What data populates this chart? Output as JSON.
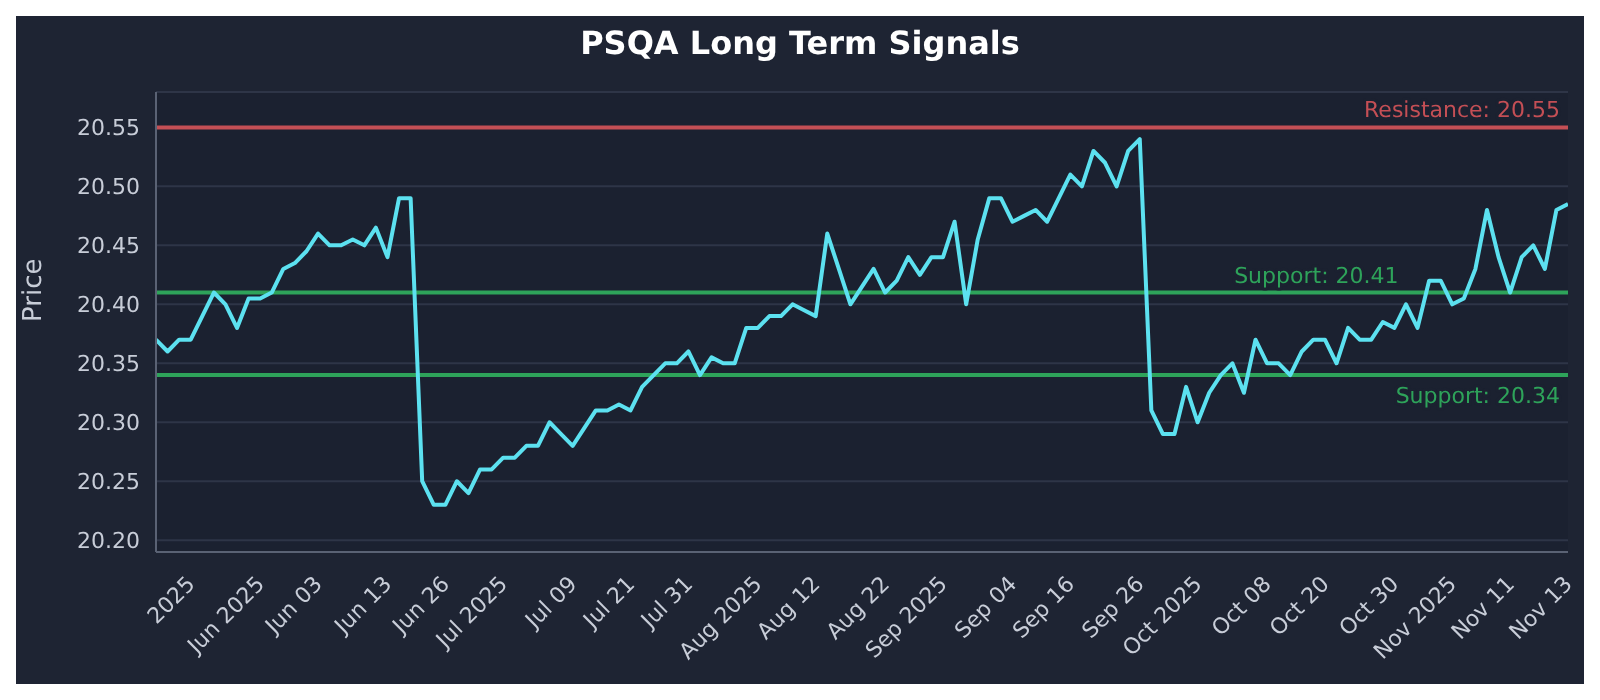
{
  "chart_data": {
    "type": "line",
    "title": "PSQA Long Term Signals",
    "ylabel": "Price",
    "categories": [
      null,
      null,
      null,
      "2025",
      null,
      null,
      null,
      null,
      null,
      "Jun 2025",
      null,
      null,
      null,
      null,
      "Jun 03",
      null,
      null,
      null,
      null,
      null,
      "Jun 13",
      null,
      null,
      null,
      null,
      "Jun 26",
      null,
      null,
      null,
      null,
      "Jul 2025",
      null,
      null,
      null,
      null,
      null,
      "Jul 09",
      null,
      null,
      null,
      null,
      "Jul 21",
      null,
      null,
      null,
      null,
      "Jul 31",
      null,
      null,
      null,
      null,
      null,
      "Aug 2025",
      null,
      null,
      null,
      null,
      "Aug 12",
      null,
      null,
      null,
      null,
      null,
      "Aug 22",
      null,
      null,
      null,
      null,
      "Sep 2025",
      null,
      null,
      null,
      null,
      null,
      "Sep 04",
      null,
      null,
      null,
      null,
      "Sep 16",
      null,
      null,
      null,
      null,
      null,
      "Sep 26",
      null,
      null,
      null,
      null,
      "Oct 2025",
      null,
      null,
      null,
      null,
      null,
      "Oct 08",
      null,
      null,
      null,
      null,
      "Oct 20",
      null,
      null,
      null,
      null,
      null,
      "Oct 30",
      null,
      null,
      null,
      null,
      "Nov 2025",
      null,
      null,
      null,
      null,
      "Nov 11",
      null,
      null,
      null,
      null,
      "Nov 13"
    ],
    "series": [
      {
        "color": "#5ce1f0",
        "values": [
          20.37,
          20.36,
          20.37,
          20.37,
          20.39,
          20.41,
          20.4,
          20.38,
          20.405,
          20.405,
          20.41,
          20.43,
          20.435,
          20.445,
          20.46,
          20.45,
          20.45,
          20.455,
          20.45,
          20.465,
          20.44,
          20.49,
          20.49,
          20.25,
          20.23,
          20.23,
          20.25,
          20.24,
          20.26,
          20.26,
          20.27,
          20.27,
          20.28,
          20.28,
          20.3,
          20.29,
          20.28,
          20.295,
          20.31,
          20.31,
          20.315,
          20.31,
          20.33,
          20.34,
          20.35,
          20.35,
          20.36,
          20.34,
          20.355,
          20.35,
          20.35,
          20.38,
          20.38,
          20.39,
          20.39,
          20.4,
          20.395,
          20.39,
          20.46,
          20.43,
          20.4,
          20.415,
          20.43,
          20.41,
          20.42,
          20.44,
          20.425,
          20.44,
          20.44,
          20.47,
          20.4,
          20.455,
          20.49,
          20.49,
          20.47,
          20.475,
          20.48,
          20.47,
          20.49,
          20.51,
          20.5,
          20.53,
          20.52,
          20.5,
          20.53,
          20.54,
          20.31,
          20.29,
          20.29,
          20.33,
          20.3,
          20.325,
          20.34,
          20.35,
          20.325,
          20.37,
          20.35,
          20.35,
          20.34,
          20.36,
          20.37,
          20.37,
          20.35,
          20.38,
          20.37,
          20.37,
          20.385,
          20.38,
          20.4,
          20.38,
          20.42,
          20.42,
          20.4,
          20.405,
          20.43,
          20.48,
          20.44,
          20.41,
          20.44,
          20.45,
          20.43,
          20.48,
          20.485
        ]
      }
    ],
    "ylim": [
      20.19,
      20.58
    ],
    "yticks": [
      {
        "value": 20.2,
        "label": "20.20"
      },
      20.25,
      {
        "value": 20.3,
        "label": "20.30"
      },
      20.35,
      {
        "value": 20.4,
        "label": "20.40"
      },
      20.45,
      {
        "value": 20.5,
        "label": "20.50"
      },
      20.55
    ],
    "grid": "y",
    "marker": "none",
    "line_style": "solid",
    "ref_lines": [
      {
        "axis": "y",
        "value": 20.55,
        "label": "Resistance: 20.55",
        "color": "#c44f55"
      },
      {
        "axis": "y",
        "value": 20.41,
        "label": "Support: 20.41",
        "color": "#2ea35a"
      },
      {
        "axis": "y",
        "value": 20.34,
        "label": "Support: 20.34",
        "color": "#2ea35a"
      }
    ]
  }
}
